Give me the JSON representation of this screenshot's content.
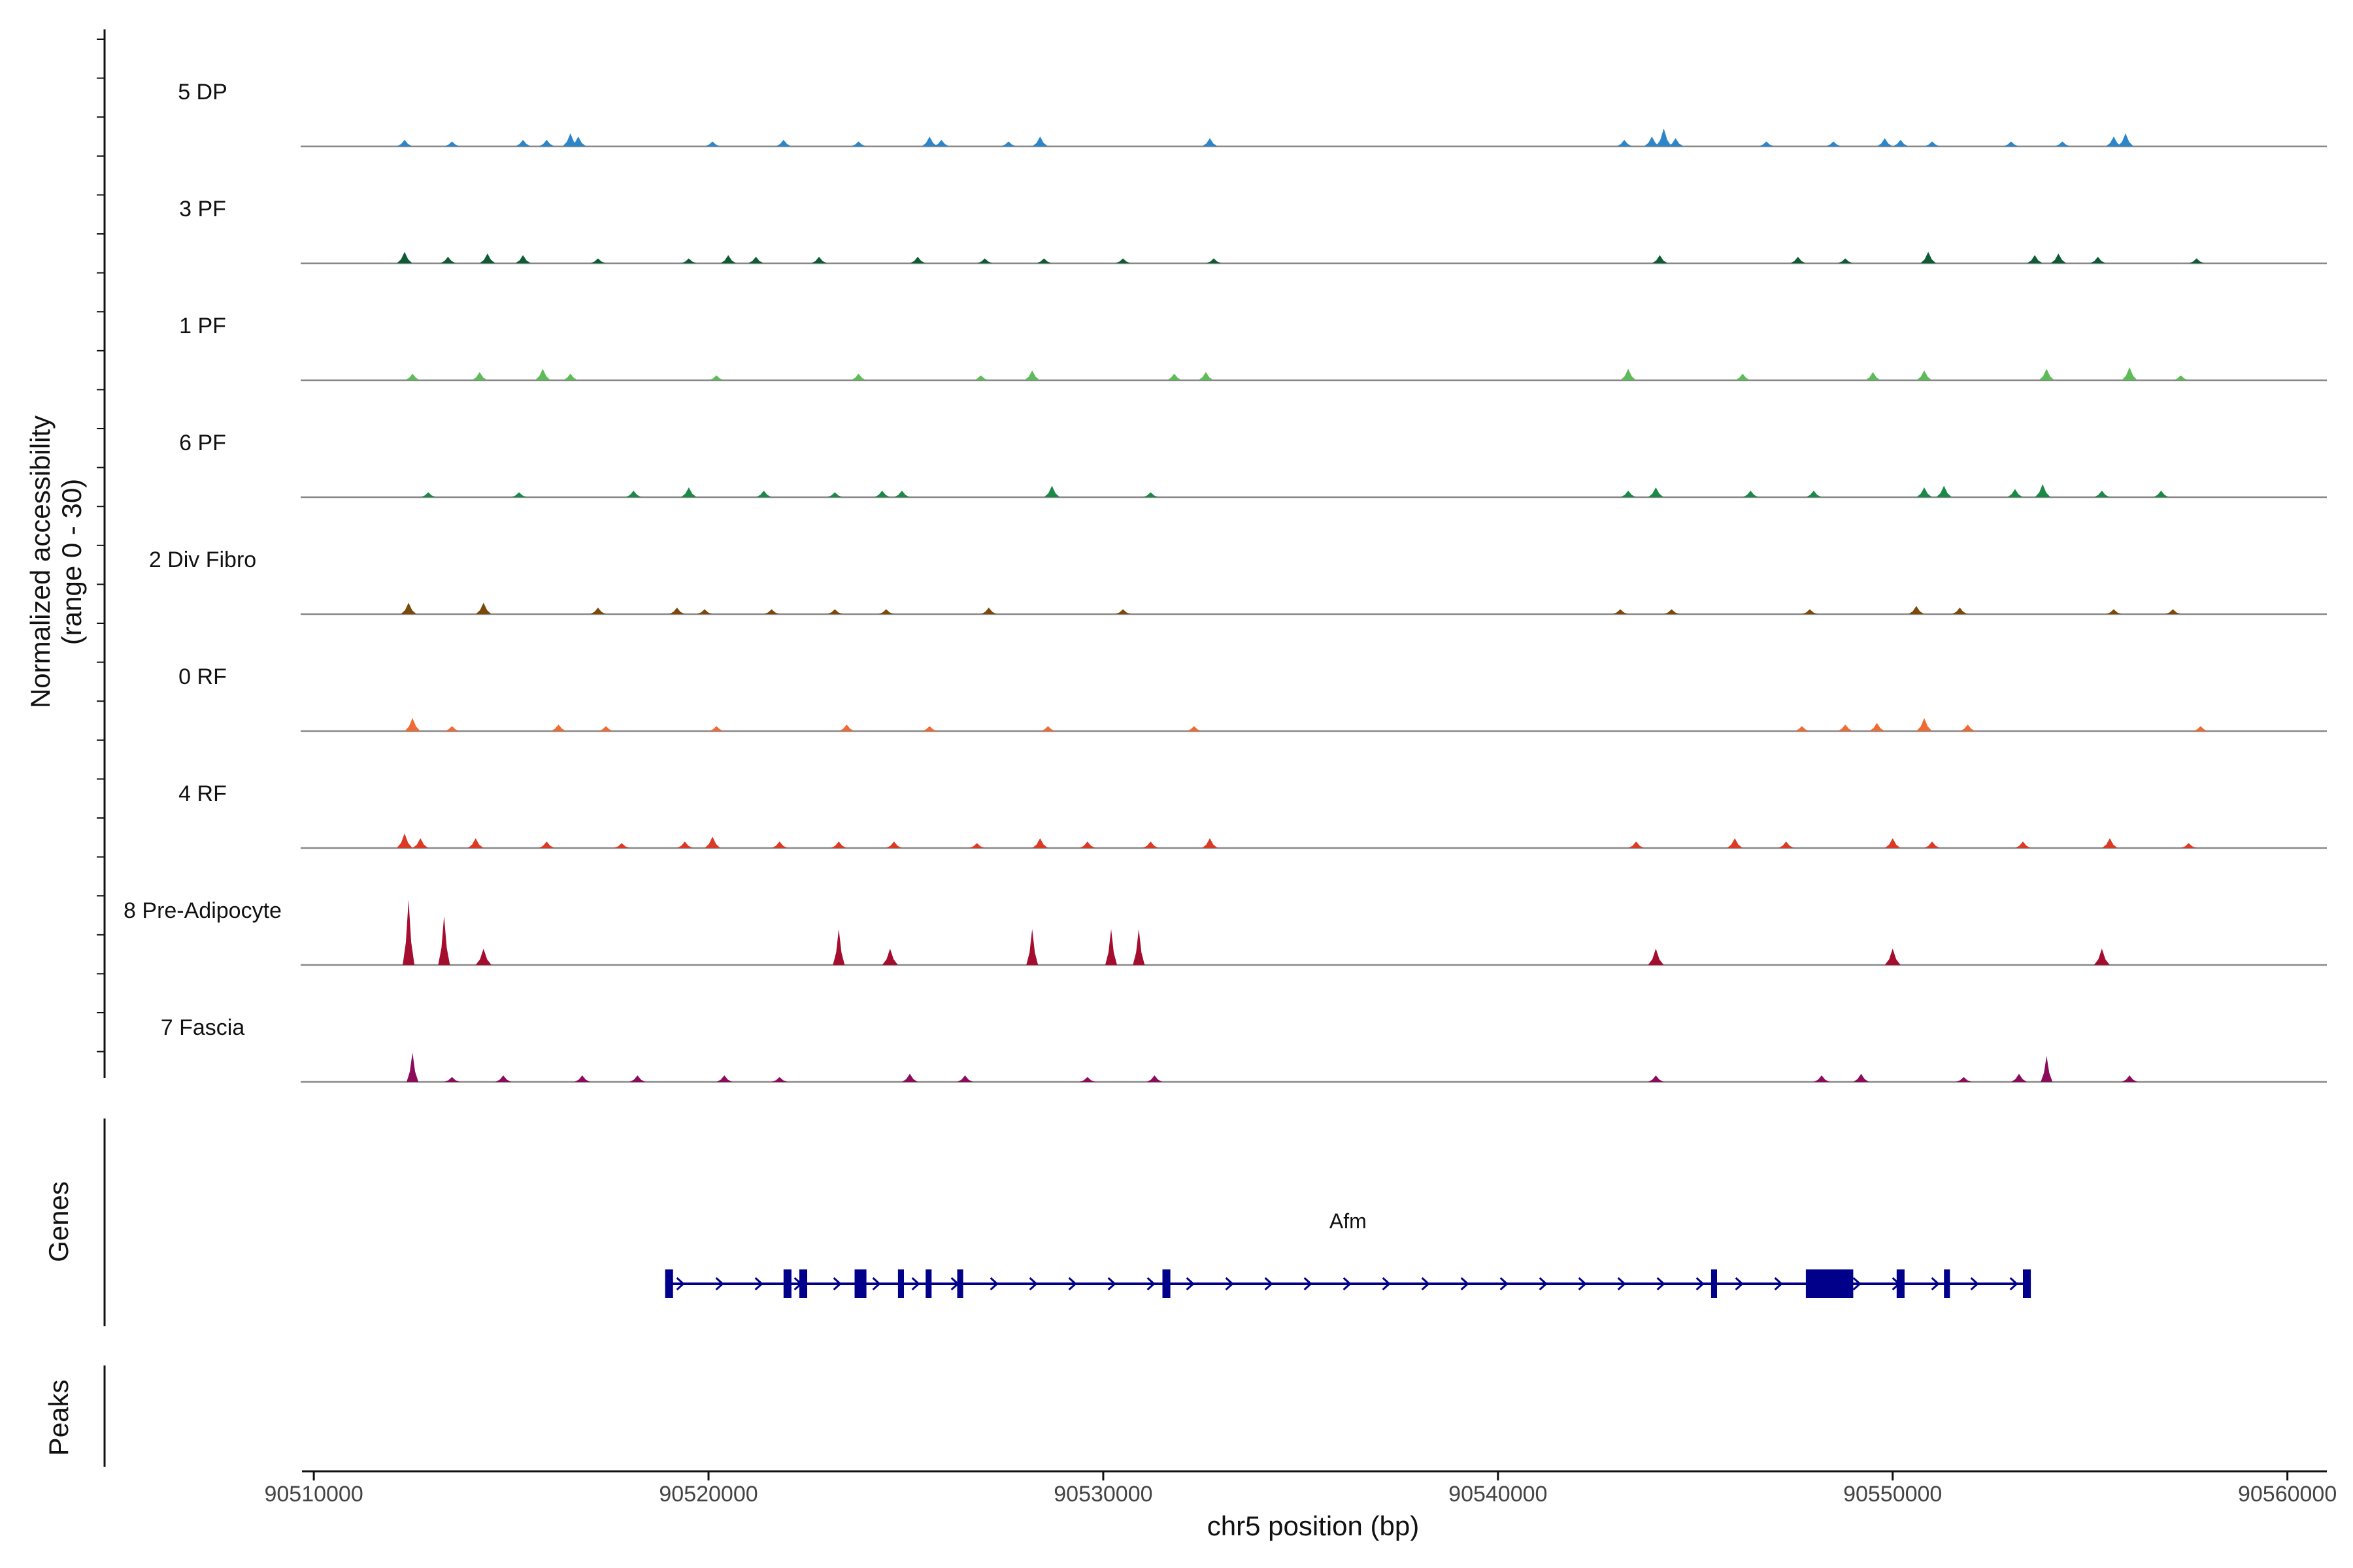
{
  "chart_data": {
    "type": "area",
    "title": "",
    "xlabel": "chr5 position (bp)",
    "ylabel": "Normalized accessibility",
    "ylabel_range": "(range 0 - 30)",
    "xlim": [
      90509700,
      90561000
    ],
    "ylim": [
      0,
      30
    ],
    "x_ticks": [
      90510000,
      90520000,
      90530000,
      90540000,
      90550000,
      90560000
    ],
    "x_tick_labels": [
      "90510000",
      "90520000",
      "90530000",
      "90540000",
      "90550000",
      "90560000"
    ],
    "panel_labels": {
      "genes": "Genes",
      "peaks": "Peaks"
    },
    "series": [
      {
        "name": "5 DP",
        "color": "#2E86C8",
        "peaks": [
          {
            "x": 90512300,
            "h": 2
          },
          {
            "x": 90513500,
            "h": 1.5
          },
          {
            "x": 90515300,
            "h": 2
          },
          {
            "x": 90515900,
            "h": 2
          },
          {
            "x": 90516500,
            "h": 4
          },
          {
            "x": 90516700,
            "h": 3
          },
          {
            "x": 90520100,
            "h": 1.5
          },
          {
            "x": 90521900,
            "h": 2
          },
          {
            "x": 90523800,
            "h": 1.5
          },
          {
            "x": 90525600,
            "h": 3
          },
          {
            "x": 90525900,
            "h": 2
          },
          {
            "x": 90527600,
            "h": 1.5
          },
          {
            "x": 90528400,
            "h": 3
          },
          {
            "x": 90532700,
            "h": 2.5
          },
          {
            "x": 90543200,
            "h": 2
          },
          {
            "x": 90543900,
            "h": 3
          },
          {
            "x": 90544200,
            "h": 5.5
          },
          {
            "x": 90544500,
            "h": 2.5
          },
          {
            "x": 90546800,
            "h": 1.5
          },
          {
            "x": 90548500,
            "h": 1.5
          },
          {
            "x": 90549800,
            "h": 2.5
          },
          {
            "x": 90550200,
            "h": 2
          },
          {
            "x": 90551000,
            "h": 1.5
          },
          {
            "x": 90553000,
            "h": 1.5
          },
          {
            "x": 90554300,
            "h": 1.5
          },
          {
            "x": 90555600,
            "h": 3
          },
          {
            "x": 90555900,
            "h": 4
          }
        ]
      },
      {
        "name": "3 PF",
        "color": "#0D5C33",
        "peaks": [
          {
            "x": 90512300,
            "h": 3.5
          },
          {
            "x": 90513400,
            "h": 2
          },
          {
            "x": 90514400,
            "h": 3
          },
          {
            "x": 90515300,
            "h": 2.5
          },
          {
            "x": 90517200,
            "h": 1.5
          },
          {
            "x": 90519500,
            "h": 1.5
          },
          {
            "x": 90520500,
            "h": 2.5
          },
          {
            "x": 90521200,
            "h": 2
          },
          {
            "x": 90522800,
            "h": 2
          },
          {
            "x": 90525300,
            "h": 2
          },
          {
            "x": 90527000,
            "h": 1.5
          },
          {
            "x": 90528500,
            "h": 1.5
          },
          {
            "x": 90530500,
            "h": 1.5
          },
          {
            "x": 90532800,
            "h": 1.5
          },
          {
            "x": 90544100,
            "h": 2.5
          },
          {
            "x": 90547600,
            "h": 2
          },
          {
            "x": 90548800,
            "h": 1.5
          },
          {
            "x": 90550900,
            "h": 3.5
          },
          {
            "x": 90553600,
            "h": 2.5
          },
          {
            "x": 90554200,
            "h": 3
          },
          {
            "x": 90555200,
            "h": 2
          },
          {
            "x": 90557700,
            "h": 1.5
          }
        ]
      },
      {
        "name": "1 PF",
        "color": "#5DBB5A",
        "peaks": [
          {
            "x": 90512500,
            "h": 2
          },
          {
            "x": 90514200,
            "h": 2.5
          },
          {
            "x": 90515800,
            "h": 3.5
          },
          {
            "x": 90516500,
            "h": 2
          },
          {
            "x": 90520200,
            "h": 1.5
          },
          {
            "x": 90523800,
            "h": 2
          },
          {
            "x": 90526900,
            "h": 1.5
          },
          {
            "x": 90528200,
            "h": 3
          },
          {
            "x": 90531800,
            "h": 2
          },
          {
            "x": 90532600,
            "h": 2.5
          },
          {
            "x": 90543300,
            "h": 3.5
          },
          {
            "x": 90546200,
            "h": 2
          },
          {
            "x": 90549500,
            "h": 2.5
          },
          {
            "x": 90550800,
            "h": 3
          },
          {
            "x": 90553900,
            "h": 3.5
          },
          {
            "x": 90556000,
            "h": 4
          },
          {
            "x": 90557300,
            "h": 1.5
          }
        ]
      },
      {
        "name": "6 PF",
        "color": "#1B8A47",
        "peaks": [
          {
            "x": 90512900,
            "h": 1.5
          },
          {
            "x": 90515200,
            "h": 1.5
          },
          {
            "x": 90518100,
            "h": 2
          },
          {
            "x": 90519500,
            "h": 3
          },
          {
            "x": 90521400,
            "h": 2
          },
          {
            "x": 90523200,
            "h": 1.5
          },
          {
            "x": 90524400,
            "h": 2
          },
          {
            "x": 90524900,
            "h": 2
          },
          {
            "x": 90528700,
            "h": 3.5
          },
          {
            "x": 90531200,
            "h": 1.5
          },
          {
            "x": 90543300,
            "h": 2
          },
          {
            "x": 90544000,
            "h": 3
          },
          {
            "x": 90546400,
            "h": 2
          },
          {
            "x": 90548000,
            "h": 2
          },
          {
            "x": 90550800,
            "h": 3
          },
          {
            "x": 90551300,
            "h": 3.5
          },
          {
            "x": 90553100,
            "h": 2.5
          },
          {
            "x": 90553800,
            "h": 4
          },
          {
            "x": 90555300,
            "h": 2
          },
          {
            "x": 90556800,
            "h": 2
          }
        ]
      },
      {
        "name": "2 Div Fibro",
        "color": "#7B4A0A",
        "peaks": [
          {
            "x": 90512400,
            "h": 3.5
          },
          {
            "x": 90514300,
            "h": 3.5
          },
          {
            "x": 90517200,
            "h": 2
          },
          {
            "x": 90519200,
            "h": 2
          },
          {
            "x": 90519900,
            "h": 1.5
          },
          {
            "x": 90521600,
            "h": 1.5
          },
          {
            "x": 90523200,
            "h": 1.5
          },
          {
            "x": 90524500,
            "h": 1.5
          },
          {
            "x": 90527100,
            "h": 2
          },
          {
            "x": 90530500,
            "h": 1.5
          },
          {
            "x": 90543100,
            "h": 1.5
          },
          {
            "x": 90544400,
            "h": 1.5
          },
          {
            "x": 90547900,
            "h": 1.5
          },
          {
            "x": 90550600,
            "h": 2.5
          },
          {
            "x": 90551700,
            "h": 2
          },
          {
            "x": 90555600,
            "h": 1.5
          },
          {
            "x": 90557100,
            "h": 1.5
          }
        ]
      },
      {
        "name": "0 RF",
        "color": "#F06A32",
        "peaks": [
          {
            "x": 90512500,
            "h": 4
          },
          {
            "x": 90513500,
            "h": 1.5
          },
          {
            "x": 90516200,
            "h": 2
          },
          {
            "x": 90517400,
            "h": 1.5
          },
          {
            "x": 90520200,
            "h": 1.5
          },
          {
            "x": 90523500,
            "h": 2
          },
          {
            "x": 90525600,
            "h": 1.5
          },
          {
            "x": 90528600,
            "h": 1.5
          },
          {
            "x": 90532300,
            "h": 1.5
          },
          {
            "x": 90547700,
            "h": 1.5
          },
          {
            "x": 90548800,
            "h": 2
          },
          {
            "x": 90549600,
            "h": 2.5
          },
          {
            "x": 90550800,
            "h": 4
          },
          {
            "x": 90551900,
            "h": 2
          },
          {
            "x": 90557800,
            "h": 1.5
          }
        ]
      },
      {
        "name": "4 RF",
        "color": "#D93B26",
        "peaks": [
          {
            "x": 90512300,
            "h": 4.5
          },
          {
            "x": 90512700,
            "h": 3
          },
          {
            "x": 90514100,
            "h": 3
          },
          {
            "x": 90515900,
            "h": 2
          },
          {
            "x": 90517800,
            "h": 1.5
          },
          {
            "x": 90519400,
            "h": 2
          },
          {
            "x": 90520100,
            "h": 3.5
          },
          {
            "x": 90521800,
            "h": 2
          },
          {
            "x": 90523300,
            "h": 2
          },
          {
            "x": 90524700,
            "h": 2
          },
          {
            "x": 90526800,
            "h": 1.5
          },
          {
            "x": 90528400,
            "h": 3
          },
          {
            "x": 90529600,
            "h": 2
          },
          {
            "x": 90531200,
            "h": 2
          },
          {
            "x": 90532700,
            "h": 3
          },
          {
            "x": 90543500,
            "h": 2
          },
          {
            "x": 90546000,
            "h": 3
          },
          {
            "x": 90547300,
            "h": 2
          },
          {
            "x": 90550000,
            "h": 3
          },
          {
            "x": 90551000,
            "h": 2
          },
          {
            "x": 90553300,
            "h": 2
          },
          {
            "x": 90555500,
            "h": 3
          },
          {
            "x": 90557500,
            "h": 1.5
          }
        ]
      },
      {
        "name": "8 Pre-Adipocyte",
        "color": "#A50D2F",
        "peaks": [
          {
            "x": 90512400,
            "h": 20
          },
          {
            "x": 90513300,
            "h": 15
          },
          {
            "x": 90514300,
            "h": 5
          },
          {
            "x": 90523300,
            "h": 11
          },
          {
            "x": 90524600,
            "h": 5
          },
          {
            "x": 90528200,
            "h": 11
          },
          {
            "x": 90530200,
            "h": 11
          },
          {
            "x": 90530900,
            "h": 11
          },
          {
            "x": 90544000,
            "h": 5
          },
          {
            "x": 90550000,
            "h": 5
          },
          {
            "x": 90555300,
            "h": 5
          }
        ]
      },
      {
        "name": "7 Fascia",
        "color": "#8C0C5C",
        "peaks": [
          {
            "x": 90512500,
            "h": 9
          },
          {
            "x": 90513500,
            "h": 1.5
          },
          {
            "x": 90514800,
            "h": 2
          },
          {
            "x": 90516800,
            "h": 2
          },
          {
            "x": 90518200,
            "h": 2
          },
          {
            "x": 90520400,
            "h": 2
          },
          {
            "x": 90521800,
            "h": 1.5
          },
          {
            "x": 90525100,
            "h": 2.5
          },
          {
            "x": 90526500,
            "h": 2
          },
          {
            "x": 90529600,
            "h": 1.5
          },
          {
            "x": 90531300,
            "h": 2
          },
          {
            "x": 90544000,
            "h": 2
          },
          {
            "x": 90548200,
            "h": 2
          },
          {
            "x": 90549200,
            "h": 2.5
          },
          {
            "x": 90551800,
            "h": 1.5
          },
          {
            "x": 90553200,
            "h": 2.5
          },
          {
            "x": 90553900,
            "h": 8
          },
          {
            "x": 90556000,
            "h": 2
          }
        ]
      }
    ],
    "gene": {
      "name": "Afm",
      "start": 90518900,
      "end": 90553500,
      "color": "#00008B",
      "exons": [
        [
          90518900,
          90519100
        ],
        [
          90521900,
          90522100
        ],
        [
          90522300,
          90522500
        ],
        [
          90523700,
          90524000
        ],
        [
          90524800,
          90524950
        ],
        [
          90525500,
          90525650
        ],
        [
          90526300,
          90526450
        ],
        [
          90531500,
          90531700
        ],
        [
          90545400,
          90545550
        ],
        [
          90547800,
          90549000
        ],
        [
          90550100,
          90550300
        ],
        [
          90551300,
          90551450
        ],
        [
          90553300,
          90553500
        ]
      ]
    }
  }
}
